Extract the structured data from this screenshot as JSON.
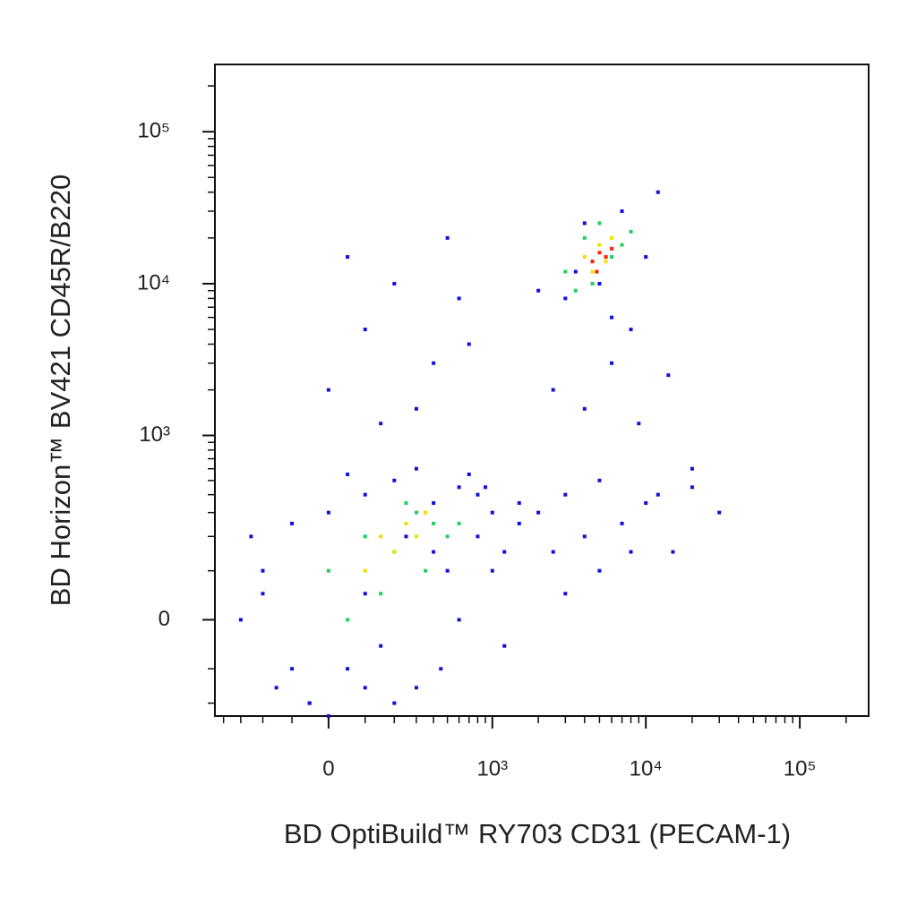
{
  "chart_data": {
    "type": "scatter",
    "x_label": "BD OptiBuild™ RY703 CD31 (PECAM-1)",
    "y_label": "BD Horizon™ BV421 CD45R/B220",
    "scale": "biexponential",
    "xlim": [
      -460,
      280000
    ],
    "ylim": [
      -250,
      277000
    ],
    "xticks": [
      0,
      {
        "value": 1000,
        "label": "10³"
      },
      {
        "value": 10000,
        "label": "10⁴"
      },
      {
        "value": 100000,
        "label": "10⁵"
      }
    ],
    "yticks": [
      0,
      {
        "value": 1000,
        "label": "10³"
      },
      {
        "value": 10000,
        "label": "10⁴"
      },
      {
        "value": 100000,
        "label": "10⁵"
      }
    ],
    "xminorticks": [
      -400,
      -300,
      -200,
      -100,
      100,
      200,
      300,
      400,
      500,
      600,
      700,
      800,
      900,
      2000,
      3000,
      4000,
      5000,
      6000,
      7000,
      8000,
      9000,
      20000,
      30000,
      40000,
      50000,
      60000,
      70000,
      80000,
      90000,
      200000
    ],
    "yminorticks": [
      -200,
      -100,
      100,
      200,
      300,
      400,
      500,
      600,
      700,
      800,
      900,
      2000,
      3000,
      4000,
      5000,
      6000,
      7000,
      8000,
      9000,
      20000,
      30000,
      40000,
      50000,
      60000,
      70000,
      80000,
      90000,
      200000
    ],
    "series": [
      {
        "color": "#1010e0",
        "x": [
          -300,
          -200,
          -150,
          -100,
          -50,
          0,
          50,
          100,
          150,
          200,
          300,
          400,
          500,
          600,
          800,
          1000,
          1200,
          1500,
          -250,
          -100,
          0,
          100,
          200,
          300,
          400,
          600,
          800,
          1000,
          1500,
          2000,
          2500,
          3000,
          4000,
          5000,
          7000,
          10000,
          15000,
          20000,
          30000,
          3000,
          5000,
          8000,
          12000,
          20000,
          2500,
          4000,
          6000,
          9000,
          14000,
          0,
          100,
          200,
          400,
          600,
          50,
          300,
          500,
          700,
          150,
          3000,
          5000,
          7000,
          4000,
          6000,
          3500,
          8000,
          2000,
          10000,
          12000,
          -200,
          -50,
          100,
          250,
          50,
          450,
          700,
          900,
          1200
        ],
        "values": [
          0,
          100,
          -150,
          250,
          -200,
          300,
          -100,
          400,
          -50,
          500,
          -150,
          350,
          100,
          450,
          200,
          300,
          150,
          250,
          200,
          -100,
          -250,
          50,
          -200,
          600,
          150,
          0,
          400,
          100,
          350,
          300,
          150,
          400,
          200,
          500,
          250,
          350,
          150,
          450,
          300,
          50,
          100,
          150,
          400,
          600,
          2000,
          1500,
          3000,
          1200,
          2500,
          2000,
          5000,
          10000,
          3000,
          8000,
          15000,
          1500,
          20000,
          4000,
          1200,
          8000,
          10000,
          30000,
          25000,
          6000,
          12000,
          5000,
          9000,
          15000,
          40000,
          50,
          -200,
          -150,
          200,
          550,
          -100,
          550,
          450,
          -50
        ]
      },
      {
        "color": "#20d060",
        "x": [
          0,
          100,
          200,
          300,
          400,
          500,
          150,
          250,
          350,
          50,
          600,
          3000,
          4000,
          5000,
          6000,
          7000,
          4500,
          3500,
          8000
        ],
        "values": [
          100,
          200,
          150,
          300,
          250,
          200,
          50,
          350,
          100,
          0,
          250,
          12000,
          20000,
          25000,
          15000,
          18000,
          10000,
          9000,
          22000
        ]
      },
      {
        "color": "#f0e000",
        "x": [
          150,
          250,
          350,
          200,
          300,
          100,
          4000,
          5000,
          6000,
          4500,
          5500
        ],
        "values": [
          200,
          250,
          300,
          150,
          200,
          100,
          15000,
          18000,
          20000,
          12000,
          14000
        ]
      },
      {
        "color": "#ff2000",
        "x": [
          4500,
          5000,
          5500,
          6000,
          4800
        ],
        "values": [
          14000,
          16000,
          15000,
          17000,
          12000
        ]
      }
    ]
  }
}
